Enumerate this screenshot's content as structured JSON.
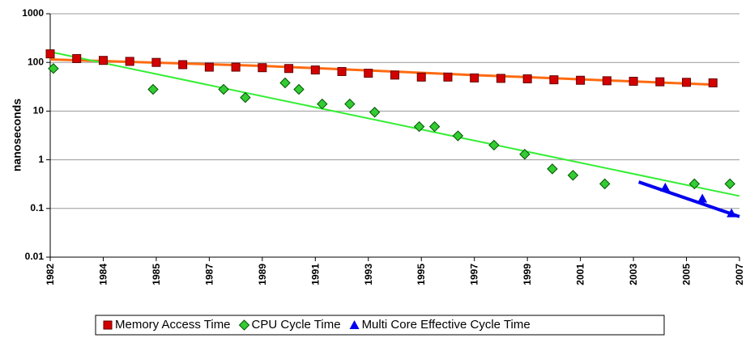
{
  "chart_data": {
    "type": "scatter",
    "y_label": "nanoseconds",
    "log_y": true,
    "grid": true,
    "legend": "bottom",
    "xlim": [
      0,
      13
    ],
    "xticks": [
      {
        "value": 0,
        "label": "1982"
      },
      {
        "value": 1,
        "label": "1984"
      },
      {
        "value": 2,
        "label": "1985"
      },
      {
        "value": 3,
        "label": "1987"
      },
      {
        "value": 4,
        "label": "1989"
      },
      {
        "value": 5,
        "label": "1991"
      },
      {
        "value": 6,
        "label": "1993"
      },
      {
        "value": 7,
        "label": "1995"
      },
      {
        "value": 8,
        "label": "1997"
      },
      {
        "value": 9,
        "label": "1999"
      },
      {
        "value": 10,
        "label": "2001"
      },
      {
        "value": 11,
        "label": "2003"
      },
      {
        "value": 12,
        "label": "2005"
      },
      {
        "value": 13,
        "label": "2007"
      }
    ],
    "ylim": [
      0.01,
      1000
    ],
    "yticks": [
      1000,
      100,
      10,
      1,
      0.1,
      0.01
    ],
    "series": [
      {
        "name": "Memory Access Time",
        "color": "#d40000",
        "marker": "square",
        "x": [
          0,
          0.5,
          1,
          1.5,
          2,
          2.5,
          3,
          3.5,
          4,
          4.5,
          5,
          5.5,
          6,
          6.5,
          7,
          7.5,
          8,
          8.5,
          9,
          9.5,
          10,
          10.5,
          11,
          11.5,
          12,
          12.5
        ],
        "values": [
          150,
          120,
          110,
          105,
          100,
          90,
          80,
          80,
          78,
          75,
          70,
          65,
          60,
          55,
          50,
          50,
          48,
          47,
          46,
          44,
          43,
          42,
          41,
          40,
          39,
          38
        ],
        "trend_color": "#ff6a10",
        "trend_x": [
          0,
          4,
          8,
          12.5
        ],
        "trend_values": [
          115,
          85,
          55,
          35
        ]
      },
      {
        "name": "CPU Cycle Time",
        "color": "#33cc33",
        "marker": "diamond",
        "x": [
          0.06,
          1.94,
          3.27,
          3.68,
          4.43,
          4.69,
          5.13,
          5.65,
          6.12,
          6.96,
          7.25,
          7.69,
          8.37,
          8.95,
          9.47,
          9.86,
          10.46,
          12.15,
          12.82
        ],
        "values": [
          75,
          28,
          28,
          19,
          38,
          28,
          14,
          14,
          9.5,
          4.8,
          4.8,
          3.1,
          2.0,
          1.3,
          0.65,
          0.48,
          0.32,
          0.32,
          0.32
        ],
        "trend_color": "#33ee33",
        "trend_x": [
          0,
          13
        ],
        "trend_values": [
          165,
          0.18
        ]
      },
      {
        "name": "Multi Core Effective Cycle Time",
        "color": "#0000ee",
        "marker": "triangle",
        "x": [
          11.6,
          12.3,
          12.85
        ],
        "values": [
          0.27,
          0.16,
          0.08
        ],
        "trend_color": "#0000ee",
        "trend_x": [
          11.1,
          13
        ],
        "trend_values": [
          0.35,
          0.068
        ]
      }
    ]
  }
}
